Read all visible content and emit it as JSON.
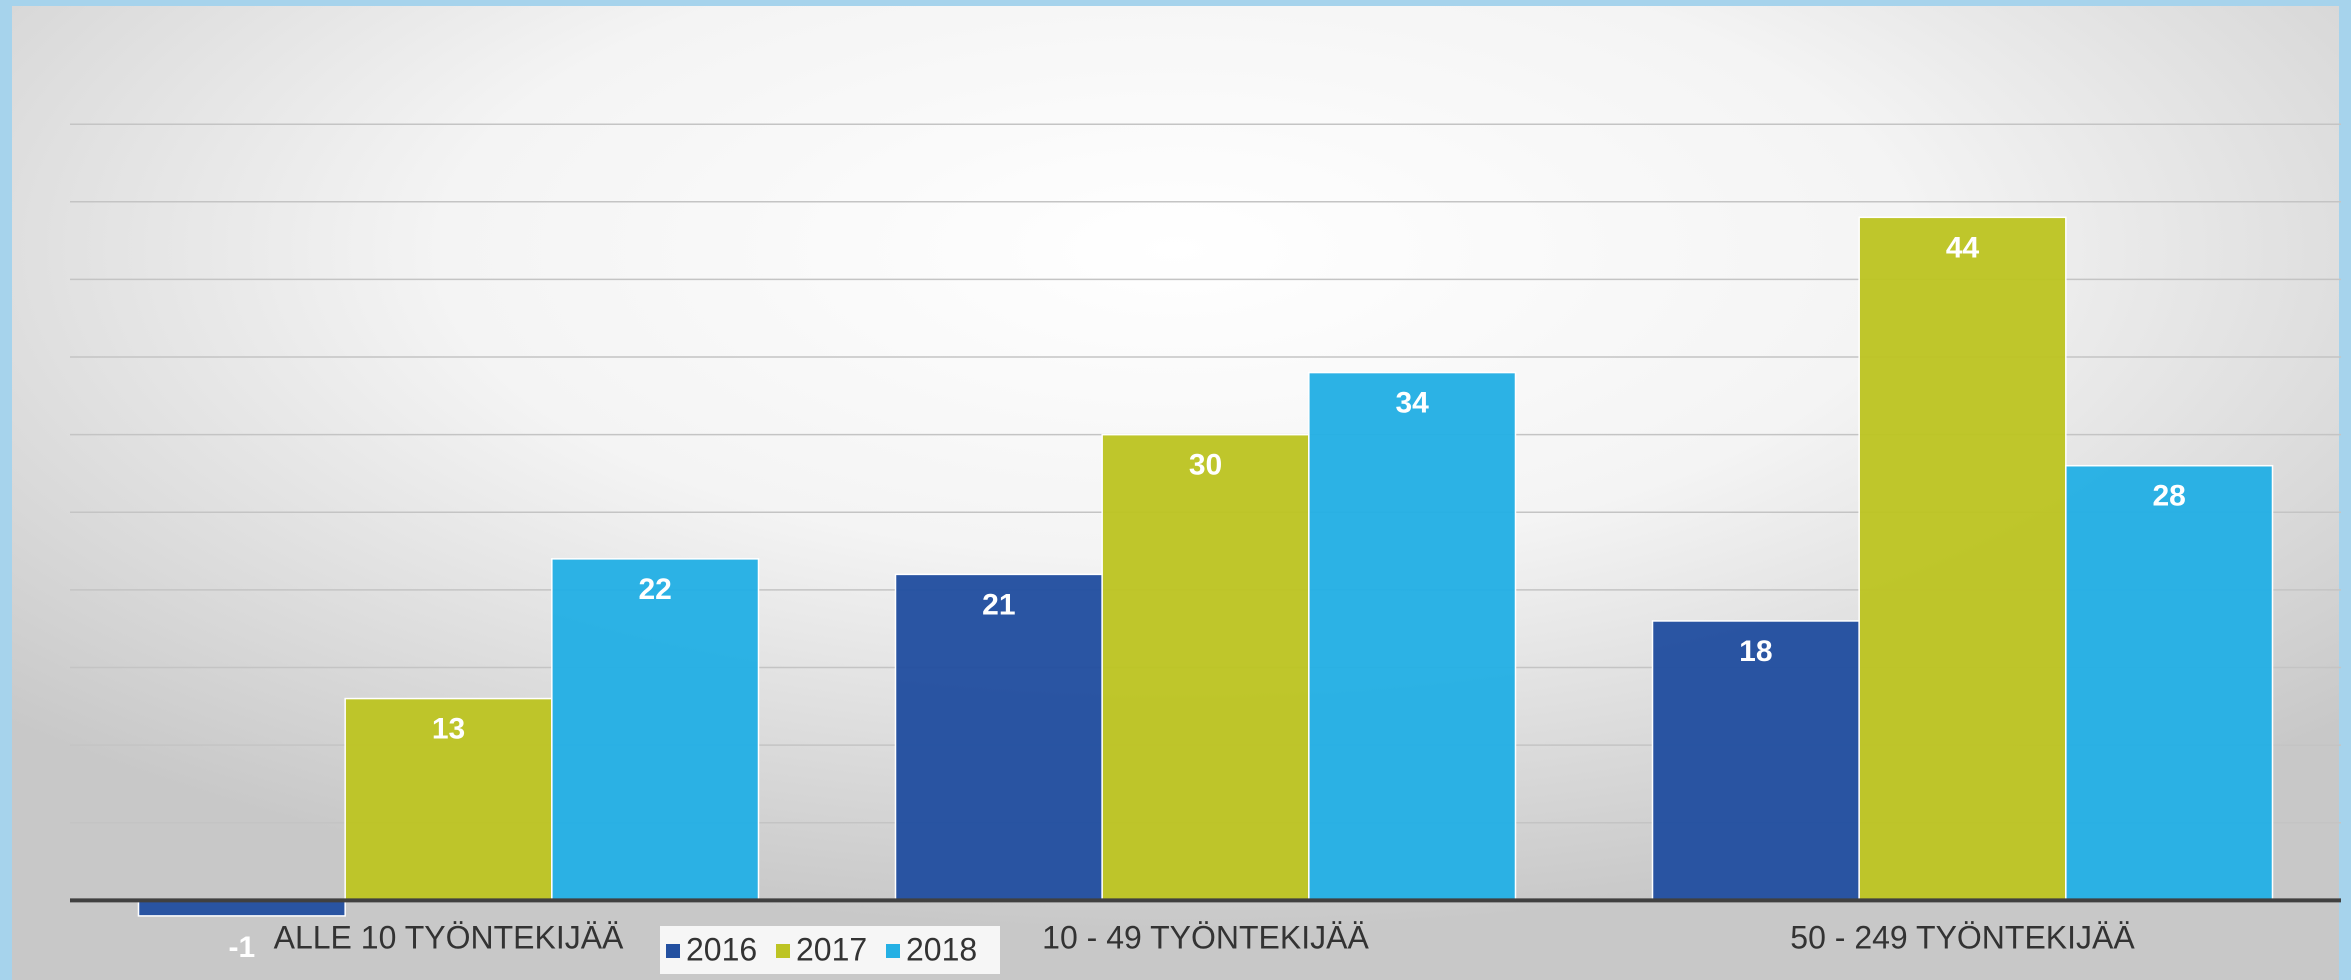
{
  "chart_data": {
    "type": "bar",
    "categories": [
      "ALLE 10 TYÖNTEKIJÄÄ",
      "10 - 49 TYÖNTEKIJÄÄ",
      "50 - 249 TYÖNTEKIJÄÄ"
    ],
    "series": [
      {
        "name": "2016",
        "color": "#2350a0",
        "values": [
          -1,
          21,
          18
        ]
      },
      {
        "name": "2017",
        "color": "#bdc424",
        "values": [
          13,
          30,
          44
        ]
      },
      {
        "name": "2018",
        "color": "#25b0e4",
        "values": [
          22,
          34,
          28
        ]
      }
    ],
    "ylim": [
      -5,
      58
    ],
    "yticks": [
      0,
      5,
      10,
      15,
      20,
      25,
      30,
      35,
      40,
      45,
      50
    ],
    "grid": true,
    "legend": "bottom"
  }
}
